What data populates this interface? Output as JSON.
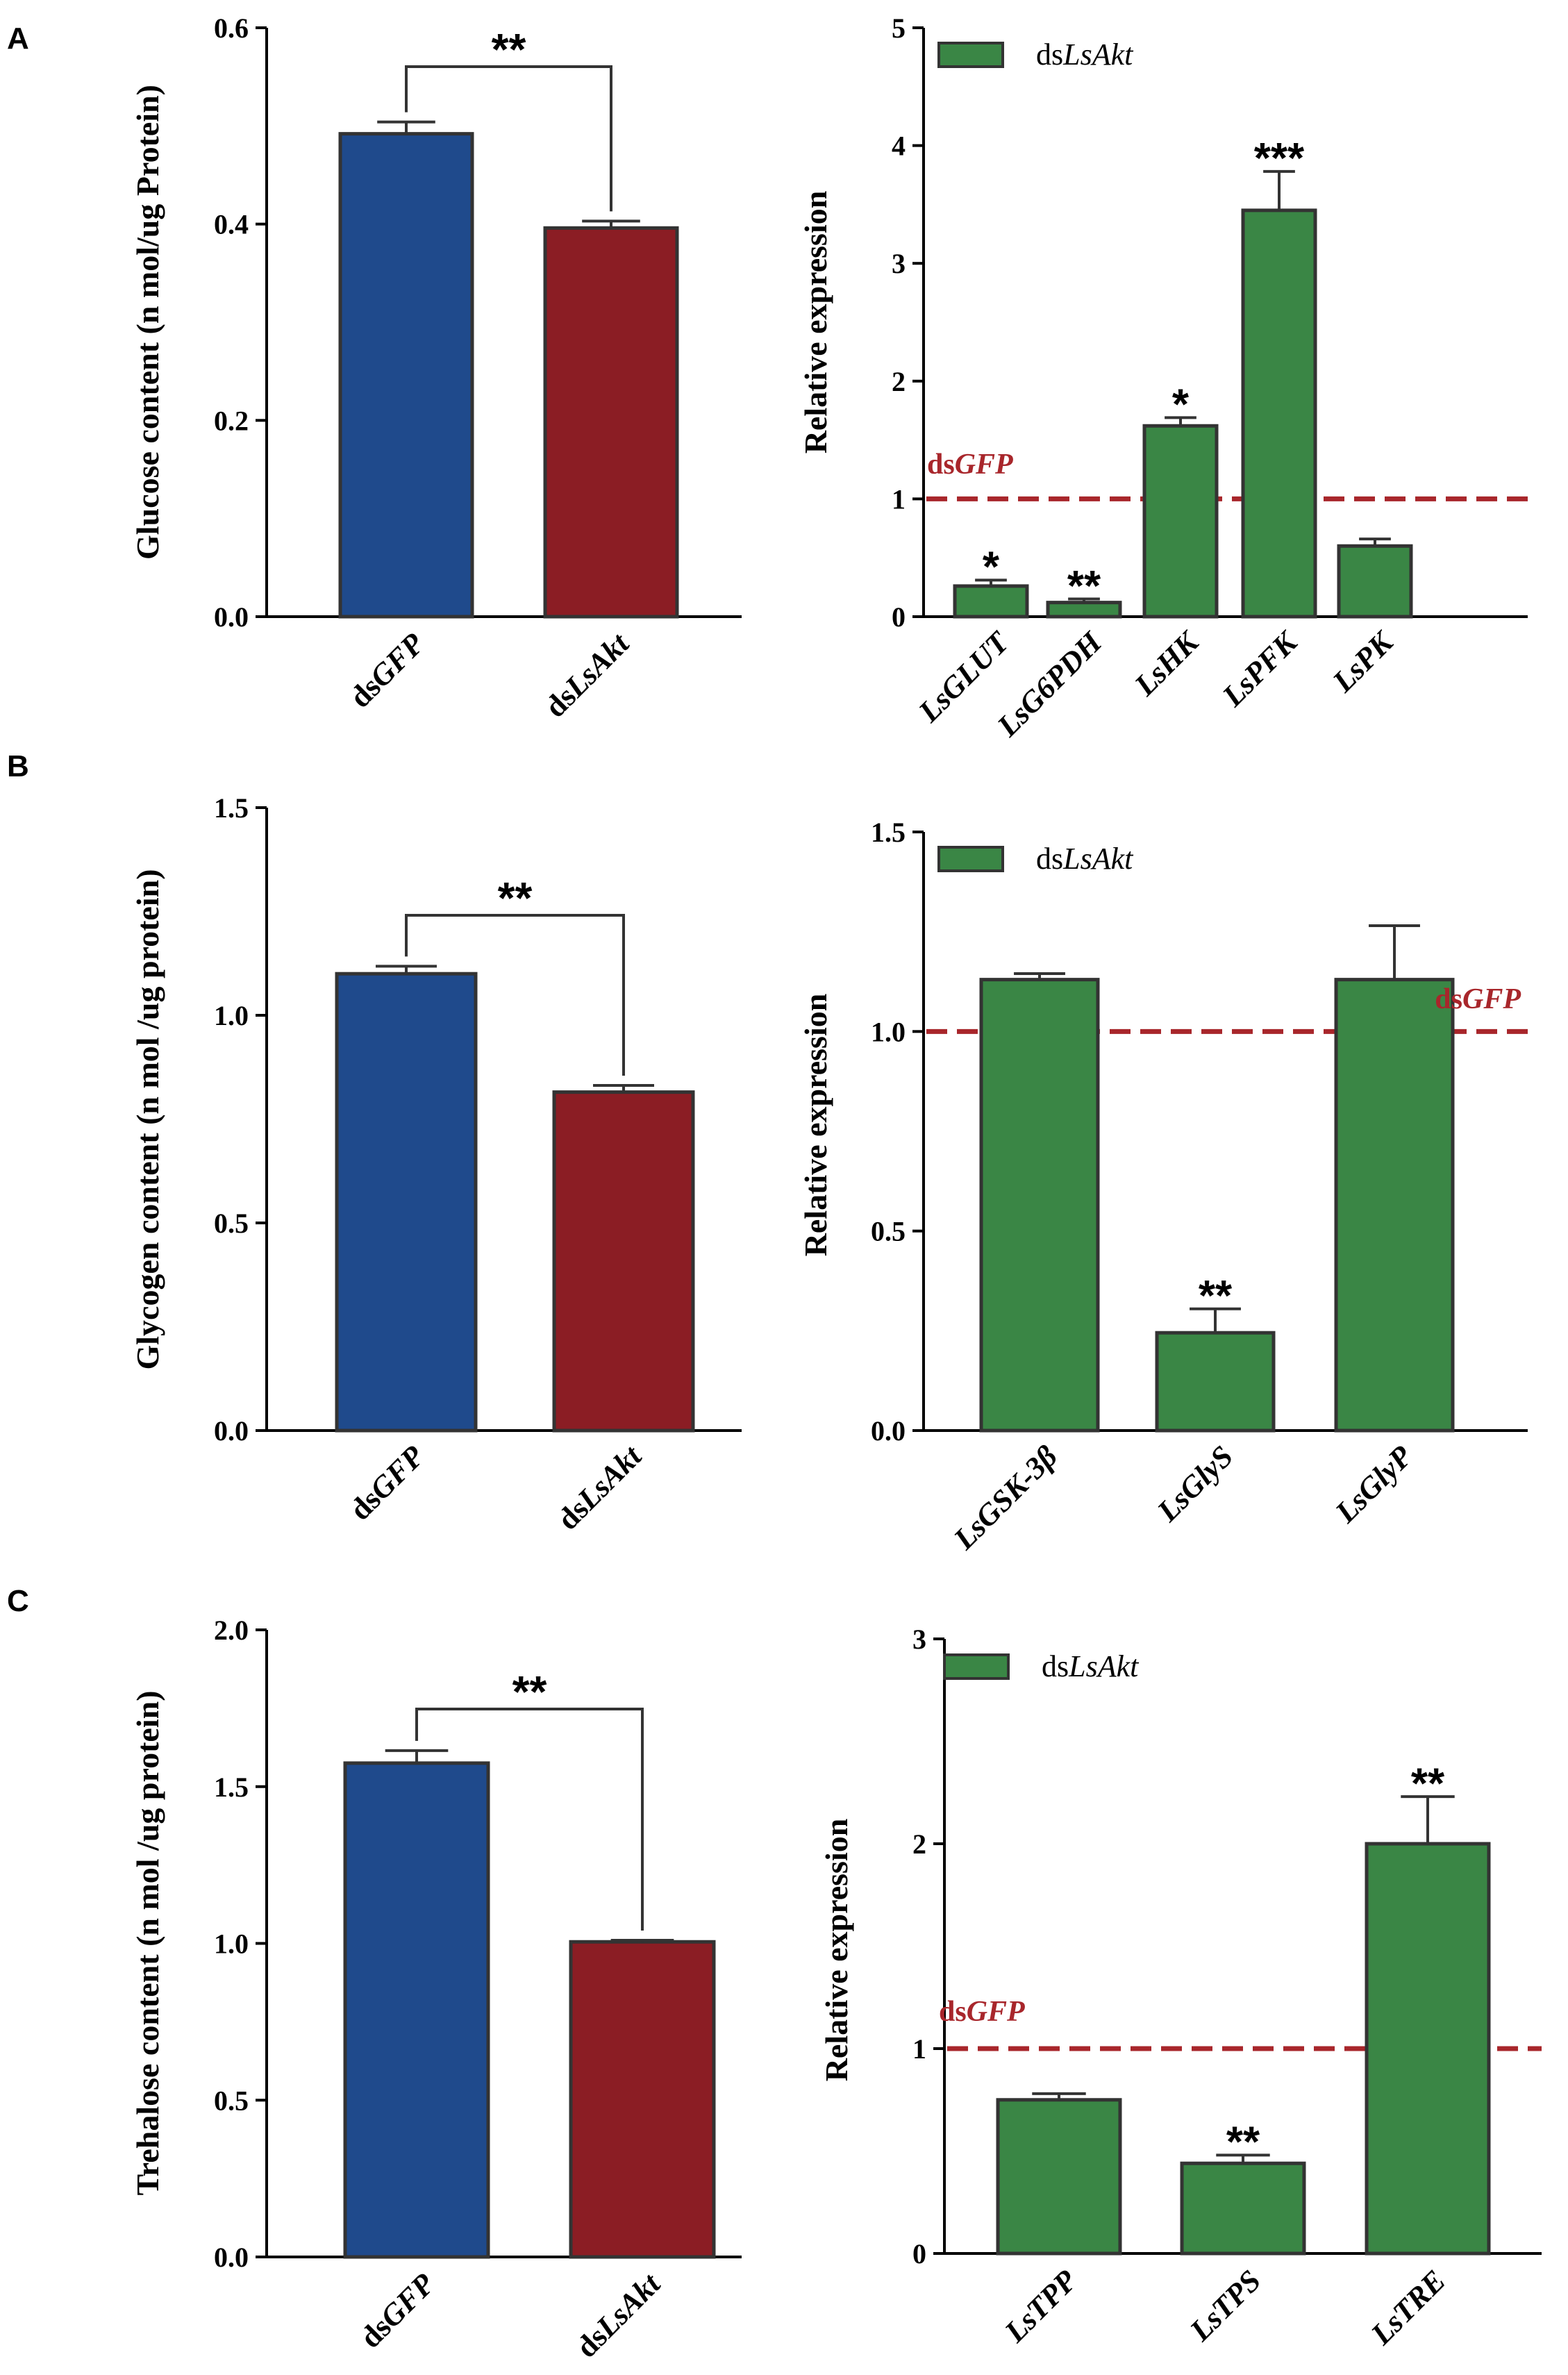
{
  "colors": {
    "ctrl": "#1f4a8c",
    "treat": "#8b1d24",
    "green": "#3a8645",
    "axis": "#000000",
    "bar_edge": "#333333",
    "ref": "#a8262b"
  },
  "chart_data": [
    {
      "id": "A-left",
      "panel": "A",
      "type": "bar",
      "ylabel": "Glucose content (n mol/ug Protein)",
      "ylim": [
        0,
        0.6
      ],
      "yticks": [
        0.0,
        0.2,
        0.4,
        0.6
      ],
      "tick_labels": [
        "0.0",
        "0.2",
        "0.4",
        "0.6"
      ],
      "categories": [
        {
          "parts": [
            {
              "t": "ds"
            },
            {
              "t": "GFP",
              "i": true
            }
          ]
        },
        {
          "parts": [
            {
              "t": "ds"
            },
            {
              "t": "LsAkt",
              "i": true
            }
          ]
        }
      ],
      "values": [
        0.492,
        0.396
      ],
      "errors": [
        0.012,
        0.007
      ],
      "colors": [
        "ctrl",
        "treat"
      ],
      "bracket": {
        "label": "**"
      }
    },
    {
      "id": "A-right",
      "panel": "A",
      "type": "bar",
      "ylabel": "Relative expression",
      "ylim": [
        0,
        5
      ],
      "yticks": [
        0,
        1,
        2,
        3,
        4,
        5
      ],
      "tick_labels": [
        "0",
        "1",
        "2",
        "3",
        "4",
        "5"
      ],
      "categories": [
        {
          "parts": [
            {
              "t": "LsGLUT",
              "i": true
            }
          ]
        },
        {
          "parts": [
            {
              "t": "LsG6PDH",
              "i": true
            }
          ]
        },
        {
          "parts": [
            {
              "t": "LsHK",
              "i": true
            }
          ]
        },
        {
          "parts": [
            {
              "t": "LsPFK",
              "i": true
            }
          ]
        },
        {
          "parts": [
            {
              "t": "LsPK",
              "i": true
            }
          ]
        }
      ],
      "values": [
        0.26,
        0.12,
        1.62,
        3.45,
        0.6
      ],
      "errors": [
        0.05,
        0.03,
        0.07,
        0.33,
        0.06
      ],
      "colors": [
        "green",
        "green",
        "green",
        "green",
        "green"
      ],
      "sig": [
        "*",
        "**",
        "*",
        "***",
        ""
      ],
      "legend": {
        "parts": [
          {
            "t": "ds"
          },
          {
            "t": "LsAkt",
            "i": true
          }
        ]
      },
      "reference": {
        "y": 1,
        "parts": [
          {
            "t": "ds"
          },
          {
            "t": "GFP",
            "i": true
          }
        ],
        "pos": "left"
      }
    },
    {
      "id": "B-left",
      "panel": "B",
      "type": "bar",
      "ylabel": "Glycogen content (n mol /ug protein)",
      "ylim": [
        0,
        1.5
      ],
      "yticks": [
        0.0,
        0.5,
        1.0,
        1.5
      ],
      "tick_labels": [
        "0.0",
        "0.5",
        "1.0",
        "1.5"
      ],
      "categories": [
        {
          "parts": [
            {
              "t": "ds"
            },
            {
              "t": "GFP",
              "i": true
            }
          ]
        },
        {
          "parts": [
            {
              "t": "ds"
            },
            {
              "t": "LsAkt",
              "i": true
            }
          ]
        }
      ],
      "values": [
        1.1,
        0.815
      ],
      "errors": [
        0.018,
        0.016
      ],
      "colors": [
        "ctrl",
        "treat"
      ],
      "bracket": {
        "label": "**"
      }
    },
    {
      "id": "B-right",
      "panel": "B",
      "type": "bar",
      "ylabel": "Relative expression",
      "ylim": [
        0,
        1.5
      ],
      "yticks": [
        0.0,
        0.5,
        1.0,
        1.5
      ],
      "tick_labels": [
        "0.0",
        "0.5",
        "1.0",
        "1.5"
      ],
      "categories": [
        {
          "parts": [
            {
              "t": "LsGSK-3β",
              "i": true
            }
          ]
        },
        {
          "parts": [
            {
              "t": "LsGlyS",
              "i": true
            }
          ]
        },
        {
          "parts": [
            {
              "t": "LsGlyP",
              "i": true
            }
          ]
        }
      ],
      "values": [
        1.13,
        0.245,
        1.13
      ],
      "errors": [
        0.015,
        0.06,
        0.135
      ],
      "colors": [
        "green",
        "green",
        "green"
      ],
      "sig": [
        "",
        "**",
        ""
      ],
      "legend": {
        "parts": [
          {
            "t": "ds"
          },
          {
            "t": "LsAkt",
            "i": true
          }
        ]
      },
      "reference": {
        "y": 1,
        "parts": [
          {
            "t": "ds"
          },
          {
            "t": "GFP",
            "i": true
          }
        ],
        "pos": "right"
      }
    },
    {
      "id": "C-left",
      "panel": "C",
      "type": "bar",
      "ylabel": "Trehalose content (n mol /ug protein)",
      "ylim": [
        0,
        2.0
      ],
      "yticks": [
        0.0,
        0.5,
        1.0,
        1.5,
        2.0
      ],
      "tick_labels": [
        "0.0",
        "0.5",
        "1.0",
        "1.5",
        "2.0"
      ],
      "categories": [
        {
          "parts": [
            {
              "t": "ds"
            },
            {
              "t": "GFP",
              "i": true
            }
          ]
        },
        {
          "parts": [
            {
              "t": "ds"
            },
            {
              "t": "LsAkt",
              "i": true
            }
          ]
        }
      ],
      "values": [
        1.575,
        1.005
      ],
      "errors": [
        0.04,
        0.005
      ],
      "colors": [
        "ctrl",
        "treat"
      ],
      "bracket": {
        "label": "**"
      }
    },
    {
      "id": "C-right",
      "panel": "C",
      "type": "bar",
      "ylabel": "Relative expression",
      "ylim": [
        0,
        3
      ],
      "yticks": [
        0,
        1,
        2,
        3
      ],
      "tick_labels": [
        "0",
        "1",
        "2",
        "3"
      ],
      "categories": [
        {
          "parts": [
            {
              "t": "LsTPP",
              "i": true
            }
          ]
        },
        {
          "parts": [
            {
              "t": "LsTPS",
              "i": true
            }
          ]
        },
        {
          "parts": [
            {
              "t": "LsTRE",
              "i": true
            }
          ]
        }
      ],
      "values": [
        0.75,
        0.44,
        2.0
      ],
      "errors": [
        0.03,
        0.04,
        0.23
      ],
      "colors": [
        "green",
        "green",
        "green"
      ],
      "sig": [
        "",
        "**",
        "**"
      ],
      "legend": {
        "parts": [
          {
            "t": "ds"
          },
          {
            "t": "LsAkt",
            "i": true
          }
        ]
      },
      "reference": {
        "y": 1,
        "parts": [
          {
            "t": "ds"
          },
          {
            "t": "GFP",
            "i": true
          }
        ],
        "pos": "left"
      }
    }
  ],
  "panel_letters": [
    "A",
    "B",
    "C"
  ]
}
